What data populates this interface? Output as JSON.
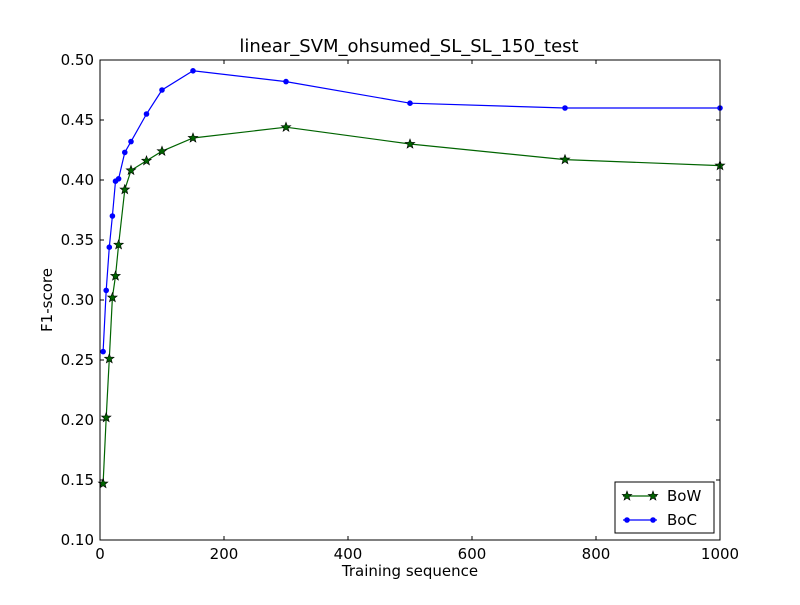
{
  "chart_data": {
    "type": "line",
    "title": "linear_SVM_ohsumed_SL_SL_150_test",
    "xlabel": "Training sequence",
    "ylabel": "F1-score",
    "xlim": [
      0,
      1000
    ],
    "ylim": [
      0.1,
      0.5
    ],
    "xticks": [
      0,
      200,
      400,
      600,
      800,
      1000
    ],
    "xtick_labels": [
      "0",
      "200",
      "400",
      "600",
      "800",
      "1000"
    ],
    "yticks": [
      0.1,
      0.15,
      0.2,
      0.25,
      0.3,
      0.35,
      0.4,
      0.45,
      0.5
    ],
    "ytick_labels": [
      "0.10",
      "0.15",
      "0.20",
      "0.25",
      "0.30",
      "0.35",
      "0.40",
      "0.45",
      "0.50"
    ],
    "grid": false,
    "legend_position": "bottom-right",
    "series": [
      {
        "name": "BoW",
        "color": "#006400",
        "marker": "star",
        "x": [
          5,
          10,
          15,
          20,
          25,
          30,
          40,
          50,
          75,
          100,
          150,
          300,
          500,
          750,
          1000
        ],
        "y": [
          0.147,
          0.202,
          0.251,
          0.302,
          0.32,
          0.346,
          0.392,
          0.408,
          0.416,
          0.424,
          0.435,
          0.444,
          0.43,
          0.417,
          0.412
        ]
      },
      {
        "name": "BoC",
        "color": "#0000ff",
        "marker": "point",
        "x": [
          5,
          10,
          15,
          20,
          25,
          30,
          40,
          50,
          75,
          100,
          150,
          300,
          500,
          750,
          1000
        ],
        "y": [
          0.257,
          0.308,
          0.344,
          0.37,
          0.399,
          0.401,
          0.423,
          0.432,
          0.455,
          0.475,
          0.491,
          0.482,
          0.464,
          0.46,
          0.46
        ]
      }
    ]
  }
}
